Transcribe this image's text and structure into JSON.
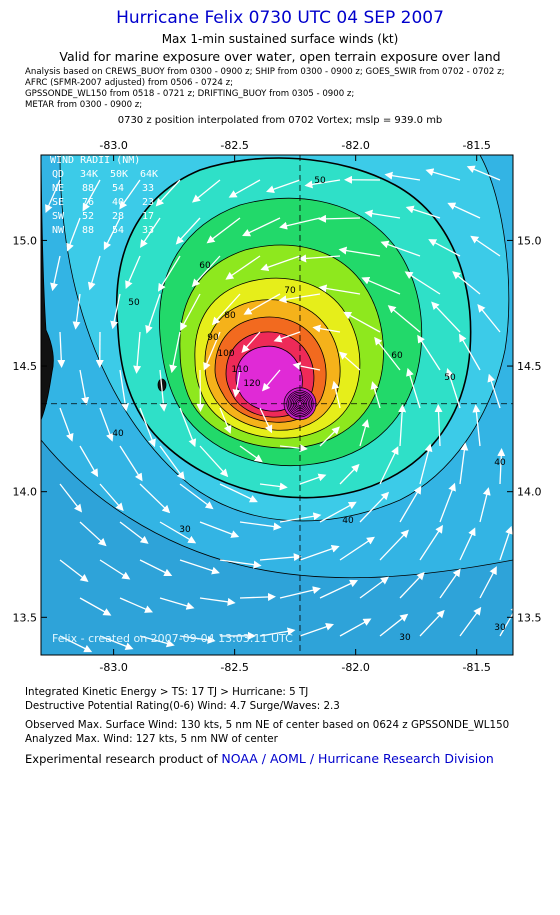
{
  "header": {
    "title": "Hurricane Felix 0730 UTC 04 SEP 2007",
    "subtitle": "Max 1-min sustained surface winds (kt)",
    "valid": "Valid for marine exposure over water, open terrain exposure over land",
    "analysis_lines": [
      "Analysis based on  CREWS_BUOY from 0300 - 0900 z;  SHIP from 0300 - 0900 z;  GOES_SWIR from 0702 - 0702 z;",
      "AFRC  (SFMR-2007 adjusted) from 0506 - 0724 z;",
      "GPSSONDE_WL150 from 0518 - 0721 z;  DRIFTING_BUOY from 0305 - 0900 z;",
      "METAR from 0300 - 0900 z;"
    ],
    "position": "0730 z position interpolated from 0702 Vortex; mslp = 939.0 mb"
  },
  "map": {
    "x_ticks": [
      "-83.0",
      "-82.5",
      "-82.0",
      "-81.5"
    ],
    "y_ticks": [
      "15.0",
      "14.5",
      "14.0",
      "13.5"
    ],
    "lon_range": [
      -83.3,
      -81.35
    ],
    "lat_range": [
      13.35,
      15.34
    ],
    "center": {
      "lon": -82.23,
      "lat": 14.35
    },
    "contour_labels": [
      "30",
      "40",
      "50",
      "60",
      "70",
      "80",
      "90",
      "100",
      "110",
      "120"
    ],
    "wind_radii": {
      "title": "WIND RADII (NM)",
      "header": [
        "QD",
        "34K",
        "50K",
        "64K"
      ],
      "rows": [
        [
          "NE",
          "88",
          "54",
          "33"
        ],
        [
          "SE",
          "76",
          "40",
          "23"
        ],
        [
          "SW",
          "52",
          "28",
          "17"
        ],
        [
          "NW",
          "88",
          "54",
          "33"
        ]
      ]
    },
    "credit": "Felix - created on 2007-09-04 13:03:11 UTC",
    "colors": {
      "outer": "#2ea3d9",
      "30": "#33b4e4",
      "40": "#3ccbe8",
      "50": "#2fe0c8",
      "60": "#22d96a",
      "70": "#8ee81e",
      "80": "#e6ee1a",
      "90": "#f5b21a",
      "100": "#f26a1f",
      "110": "#ee2a58",
      "120": "#e02ad6",
      "130": "#c81ec8",
      "land": "#111111"
    }
  },
  "footer": {
    "ike": "Integrated Kinetic Energy > TS: 17 TJ   > Hurricane: 5 TJ",
    "dpr": "Destructive Potential Rating(0-6)   Wind: 4.7 Surge/Waves: 2.3",
    "observed": "Observed Max. Surface Wind: 130 kts, 5 nm NE of center based on 0624 z GPSSONDE_WL150",
    "analyzed": "Analyzed Max. Wind: 127 kts, 5 nm NW of center",
    "product_prefix": "Experimental research product of ",
    "product_org": "NOAA / AOML / Hurricane Research Division"
  }
}
